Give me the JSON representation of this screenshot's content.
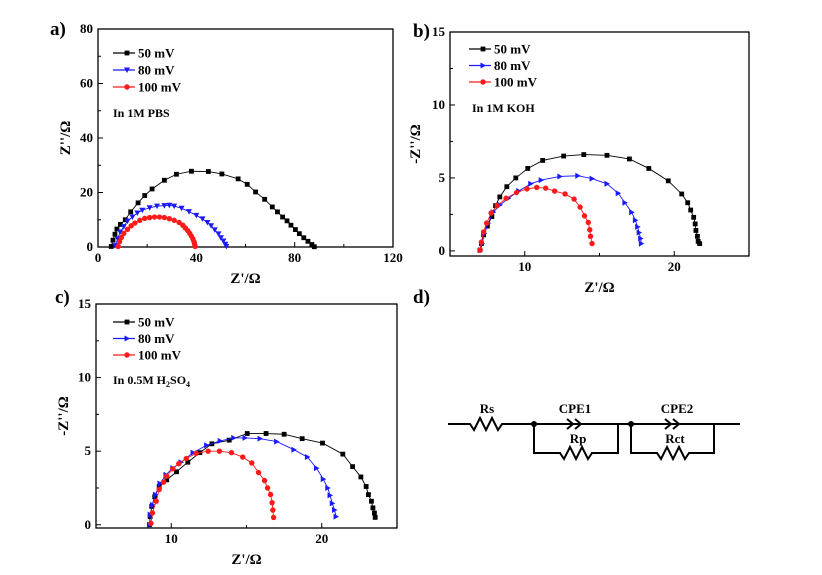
{
  "chart_data": [
    {
      "type": "scatter",
      "panel_label": "a)",
      "annotation": "In 1M PBS",
      "xlabel": "Z'/Ω",
      "ylabel": "Z''/Ω",
      "xlim": [
        0,
        120
      ],
      "ylim": [
        0,
        80
      ],
      "xticks": [
        0,
        40,
        80,
        120
      ],
      "yticks": [
        0,
        20,
        40,
        60,
        80
      ],
      "legend_position": "top-left",
      "series": [
        {
          "name": "50 mV",
          "color": "#000000",
          "marker": "square",
          "x": [
            5.4,
            6.1,
            6.9,
            7.7,
            9.1,
            11.1,
            13.3,
            16.3,
            19,
            22,
            27,
            31.9,
            38,
            44.9,
            50.4,
            57,
            60.7,
            64.1,
            67.8,
            70.9,
            73,
            75.1,
            76.9,
            78.5,
            80.3,
            81.9,
            83.7,
            85.4,
            87,
            88
          ],
          "y": [
            0.2,
            2.5,
            4.7,
            6.6,
            8.3,
            10,
            12.9,
            16.2,
            18.9,
            21.3,
            24.5,
            26.7,
            27.8,
            27.7,
            26.8,
            25,
            23,
            20.2,
            17.5,
            14.7,
            12.9,
            11,
            9.6,
            8,
            6.4,
            4.9,
            3.4,
            2.1,
            0.9,
            0.1
          ]
        },
        {
          "name": "80 mV",
          "color": "#1a1aff",
          "marker": "triangle-down",
          "x": [
            7,
            8,
            9,
            10.5,
            12,
            14,
            16,
            18,
            21,
            24,
            27,
            29,
            31,
            34,
            37,
            40,
            42.5,
            44.5,
            46,
            47.5,
            49,
            50,
            51,
            51.8,
            52.2
          ],
          "y": [
            0.5,
            3,
            5.5,
            7.5,
            9.5,
            11,
            12.5,
            13.5,
            14.4,
            15,
            15.2,
            15.3,
            15,
            14.2,
            13,
            11.6,
            10.3,
            9,
            7.8,
            6.3,
            4.8,
            3.4,
            2.2,
            1,
            0.2
          ]
        },
        {
          "name": "100 mV",
          "color": "#ff1a1a",
          "marker": "circle",
          "x": [
            8.2,
            8.8,
            9.5,
            10.5,
            12,
            13.5,
            15,
            17,
            19,
            21,
            23,
            25,
            27,
            29,
            31,
            33,
            34.5,
            35.5,
            36.5,
            37.3,
            38,
            38.6,
            39,
            39.3,
            39.5
          ],
          "y": [
            0.2,
            2,
            3.5,
            5,
            6.5,
            7.8,
            8.8,
            9.8,
            10.5,
            10.8,
            11,
            11,
            10.8,
            10.4,
            9.8,
            9,
            8,
            7,
            6,
            5,
            4,
            3,
            2,
            1,
            0.2
          ]
        }
      ]
    },
    {
      "type": "scatter",
      "panel_label": "b)",
      "annotation": "In 1M KOH",
      "xlabel": "Z'/Ω",
      "ylabel": "-Z''/Ω",
      "xlim": [
        5,
        25
      ],
      "ylim": [
        -0.35,
        15
      ],
      "xticks": [
        10,
        20
      ],
      "yticks": [
        0,
        5,
        10,
        15
      ],
      "legend_position": "top-left",
      "series": [
        {
          "name": "50 mV",
          "color": "#000000",
          "marker": "square",
          "x": [
            7.0,
            7.1,
            7.25,
            7.5,
            7.8,
            8.05,
            8.33,
            8.8,
            9.4,
            10.2,
            11.2,
            12.6,
            13.95,
            15.5,
            17,
            18.3,
            19.6,
            20.5,
            20.9,
            21.1,
            21.3,
            21.4,
            21.45,
            21.55,
            21.6,
            21.7
          ],
          "y": [
            0.05,
            0.5,
            1.1,
            1.7,
            2.35,
            3.1,
            3.7,
            4.4,
            5.0,
            5.65,
            6.2,
            6.5,
            6.6,
            6.55,
            6.3,
            5.65,
            4.8,
            3.9,
            3.3,
            2.8,
            2.3,
            1.85,
            1.4,
            1.0,
            0.65,
            0.5
          ]
        },
        {
          "name": "80 mV",
          "color": "#1a1aff",
          "marker": "triangle-right",
          "x": [
            7.05,
            7.15,
            7.3,
            7.55,
            7.9,
            8.35,
            8.9,
            9.6,
            10.4,
            11.1,
            12.35,
            13.55,
            14.5,
            15.5,
            16.25,
            16.7,
            17.15,
            17.4,
            17.55,
            17.65,
            17.75,
            17.8
          ],
          "y": [
            0.05,
            0.5,
            1.2,
            1.9,
            2.65,
            3.15,
            3.6,
            4.1,
            4.6,
            4.85,
            5.1,
            5.15,
            4.95,
            4.6,
            3.95,
            3.3,
            2.65,
            2.1,
            1.65,
            1.25,
            0.85,
            0.5
          ]
        },
        {
          "name": "100 mV",
          "color": "#ff1a1a",
          "marker": "circle",
          "x": [
            7.0,
            7.1,
            7.25,
            7.45,
            7.75,
            8.15,
            8.75,
            9.45,
            10.15,
            10.8,
            11.4,
            12,
            12.7,
            13.3,
            13.7,
            14.0,
            14.25,
            14.35,
            14.4,
            14.5
          ],
          "y": [
            0.05,
            0.6,
            1.3,
            1.9,
            2.6,
            3.1,
            3.6,
            4.0,
            4.25,
            4.35,
            4.3,
            4.1,
            3.9,
            3.55,
            3.0,
            2.4,
            1.95,
            1.45,
            1.0,
            0.5
          ]
        }
      ]
    },
    {
      "type": "scatter",
      "panel_label": "c)",
      "annotation_main": "In 0.5M H",
      "annotation_sub1": "2",
      "annotation_mid": "SO",
      "annotation_sub2": "4",
      "xlabel": "Z'/Ω",
      "ylabel": "-Z''/Ω",
      "xlim": [
        5,
        25
      ],
      "ylim": [
        -0.22,
        15
      ],
      "xticks": [
        10,
        20
      ],
      "yticks": [
        0,
        5,
        10,
        15
      ],
      "legend_position": "top-left",
      "series": [
        {
          "name": "50 mV",
          "color": "#000000",
          "marker": "square",
          "x": [
            8.55,
            8.6,
            8.7,
            8.9,
            9.2,
            9.7,
            10.35,
            11.1,
            11.9,
            12.7,
            13.85,
            15.05,
            16.3,
            17.5,
            18.7,
            20.05,
            21.4,
            22.05,
            22.6,
            22.95,
            23.1,
            23.3,
            23.4,
            23.5,
            23.55
          ],
          "y": [
            0,
            0.55,
            1.25,
            1.9,
            2.6,
            3.05,
            3.6,
            4.25,
            4.9,
            5.5,
            5.75,
            6.2,
            6.2,
            6.15,
            5.85,
            5.55,
            4.8,
            3.95,
            3.25,
            2.6,
            2.05,
            1.6,
            1.15,
            0.8,
            0.5
          ]
        },
        {
          "name": "80 mV",
          "color": "#1a1aff",
          "marker": "triangle-right",
          "x": [
            8.55,
            8.6,
            8.75,
            8.95,
            9.25,
            9.65,
            10.1,
            10.65,
            11.45,
            12.35,
            13.25,
            14.15,
            14.9,
            15.9,
            17.0,
            18.15,
            19.05,
            19.65,
            20.1,
            20.4,
            20.55,
            20.7,
            20.85,
            20.95
          ],
          "y": [
            0,
            0.7,
            1.35,
            2.05,
            2.8,
            3.4,
            3.85,
            4.25,
            4.9,
            5.4,
            5.7,
            5.9,
            5.9,
            5.85,
            5.65,
            5.1,
            4.6,
            3.85,
            3.1,
            2.5,
            2.0,
            1.45,
            1.0,
            0.55
          ]
        },
        {
          "name": "100 mV",
          "color": "#ff1a1a",
          "marker": "circle",
          "x": [
            8.65,
            8.75,
            9.0,
            9.2,
            9.5,
            9.7,
            10.1,
            10.5,
            11.0,
            11.65,
            12.45,
            13.2,
            14.0,
            14.75,
            15.35,
            15.8,
            16.2,
            16.4,
            16.6,
            16.7,
            16.75,
            16.8
          ],
          "y": [
            0.1,
            0.8,
            1.6,
            2.4,
            2.9,
            3.3,
            3.8,
            4.15,
            4.5,
            4.85,
            5.0,
            5.0,
            4.9,
            4.6,
            4.2,
            3.55,
            3.0,
            2.5,
            2.05,
            1.5,
            1.0,
            0.5
          ]
        }
      ]
    }
  ],
  "circuit": {
    "panel_label": "d)",
    "rs": "Rs",
    "cpe1": "CPE1",
    "rp": "Rp",
    "cpe2": "CPE2",
    "rct": "Rct"
  }
}
